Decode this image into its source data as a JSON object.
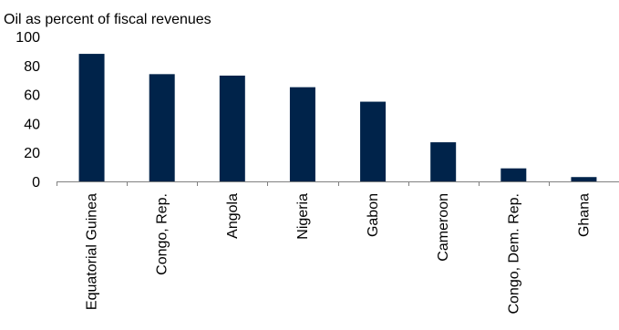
{
  "chart_data": {
    "type": "bar",
    "title": "Oil as percent of fiscal revenues",
    "xlabel": "",
    "ylabel": "",
    "categories": [
      "Equatorial Guinea",
      "Congo, Rep.",
      "Angola",
      "Nigeria",
      "Gabon",
      "Cameroon",
      "Congo, Dem. Rep.",
      "Ghana"
    ],
    "values": [
      88,
      74,
      73,
      65,
      55,
      27,
      9,
      3
    ],
    "ylim": [
      0,
      100
    ],
    "yticks": [
      "0",
      "20",
      "40",
      "60",
      "80",
      "100"
    ],
    "grid": false,
    "legend": "none",
    "colors": {
      "bar": "#00234a",
      "axis": "#808080",
      "text": "#000000"
    }
  }
}
